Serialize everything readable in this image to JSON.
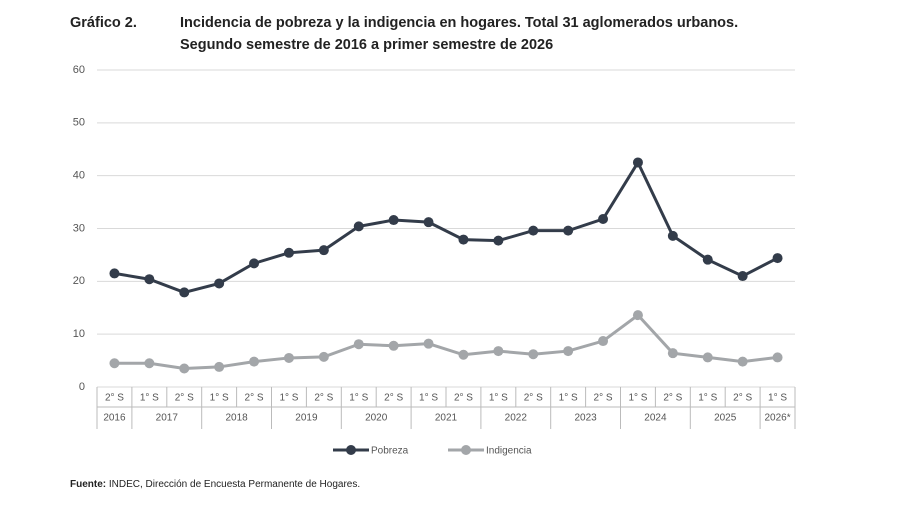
{
  "chart_data": {
    "type": "line",
    "chart_label": "Gráfico 2.",
    "title": "Incidencia de pobreza y la indigencia en hogares. Total 31 aglomerados urbanos.",
    "subtitle": "Segundo semestre de 2016 a primer semestre de 2026",
    "categories": [
      "2° S",
      "1° S",
      "2° S",
      "1° S",
      "2° S",
      "1° S",
      "2° S",
      "1° S",
      "2° S",
      "1° S",
      "2° S",
      "1° S",
      "2° S",
      "1° S",
      "2° S",
      "1° S",
      "2° S",
      "1° S",
      "2° S",
      "1° S"
    ],
    "category_groups": [
      {
        "label": "2016",
        "count": 1
      },
      {
        "label": "2017",
        "count": 2
      },
      {
        "label": "2018",
        "count": 2
      },
      {
        "label": "2019",
        "count": 2
      },
      {
        "label": "2020",
        "count": 2
      },
      {
        "label": "2021",
        "count": 2
      },
      {
        "label": "2022",
        "count": 2
      },
      {
        "label": "2023",
        "count": 2
      },
      {
        "label": "2024",
        "count": 2
      },
      {
        "label": "2025",
        "count": 2
      },
      {
        "label": "2026*",
        "count": 1
      }
    ],
    "series": [
      {
        "name": "Pobreza",
        "color": "#333c4a",
        "values": [
          21.5,
          20.4,
          17.9,
          19.6,
          23.4,
          25.4,
          25.9,
          30.4,
          31.6,
          31.2,
          27.9,
          27.7,
          29.6,
          29.6,
          31.8,
          42.5,
          28.6,
          24.1,
          21.0,
          24.4
        ]
      },
      {
        "name": "Indigencia",
        "color": "#a3a6a9",
        "values": [
          4.5,
          4.5,
          3.5,
          3.8,
          4.8,
          5.5,
          5.7,
          8.1,
          7.8,
          8.2,
          6.1,
          6.8,
          6.2,
          6.8,
          8.7,
          13.6,
          6.4,
          5.6,
          4.8,
          5.6
        ]
      }
    ],
    "ylim": [
      0,
      60
    ],
    "yticks": [
      0,
      10,
      20,
      30,
      40,
      50,
      60
    ],
    "grid": true,
    "source_label": "Fuente:",
    "source": "INDEC, Dirección de Encuesta Permanente de Hogares."
  }
}
